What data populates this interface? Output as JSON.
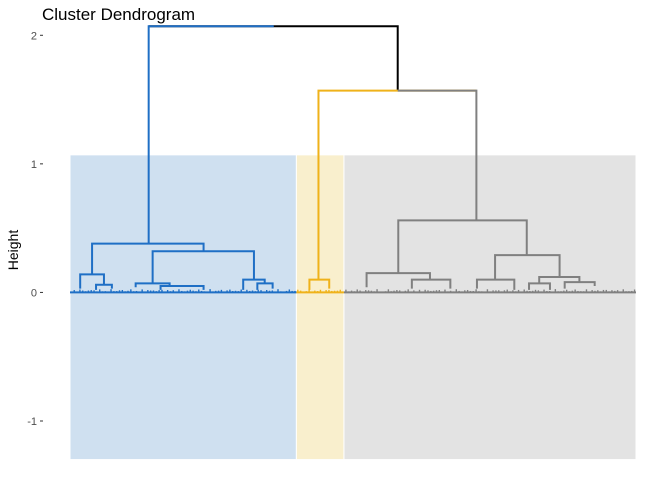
{
  "chart_data": {
    "type": "dendrogram",
    "title": "Cluster Dendrogram",
    "xlabel": "",
    "ylabel": "Height",
    "ylim": [
      -1.35,
      2.15
    ],
    "y_ticks": [
      {
        "value": 2,
        "label": "2"
      },
      {
        "value": 1,
        "label": "1"
      },
      {
        "value": 0,
        "label": "0"
      },
      {
        "value": -1,
        "label": "-1"
      }
    ],
    "grid": false,
    "rect_bottom": -1.3,
    "rect_top": 1.07,
    "colors": {
      "cluster_1": "#1f6fc5",
      "cluster_2": "#efb21a",
      "cluster_3": "#808080",
      "root": "#000000",
      "rect_1": "#cfe0f0",
      "rect_2": "#f9efcd",
      "rect_3": "#e3e3e3"
    },
    "clusters": [
      {
        "id": 1,
        "color_key": "cluster_1",
        "rect_key": "rect_1",
        "leaf_start": 0,
        "leaf_end": 0.4
      },
      {
        "id": 2,
        "color_key": "cluster_2",
        "rect_key": "rect_2",
        "leaf_start": 0.4,
        "leaf_end": 0.484
      },
      {
        "id": 3,
        "color_key": "cluster_3",
        "rect_key": "rect_3",
        "leaf_start": 0.484,
        "leaf_end": 1
      }
    ],
    "merges": [
      {
        "height": 2.07,
        "left": 0.139,
        "right": 0.579,
        "color_key": "root",
        "left_drop": 2.07,
        "right_drop": 1.57
      },
      {
        "height": 2.07,
        "left": 0.139,
        "right": 0.36,
        "color_key": "cluster_1",
        "left_drop": 0.38,
        "right_drop": 2.07
      },
      {
        "height": 1.57,
        "left": 0.439,
        "right": 0.718,
        "color_key": "cluster_2",
        "left_drop": 0.1,
        "right_drop": 1.57
      },
      {
        "height": 1.57,
        "left": 0.579,
        "right": 0.718,
        "color_key": "cluster_3",
        "left_drop": 1.57,
        "right_drop": 0.56
      },
      {
        "height": 0.38,
        "left": 0.039,
        "right": 0.236,
        "color_key": "cluster_1",
        "left_drop": 0.14,
        "right_drop": 0.32
      },
      {
        "height": 0.32,
        "left": 0.146,
        "right": 0.325,
        "color_key": "cluster_1",
        "left_drop": 0.07,
        "right_drop": 0.1
      },
      {
        "height": 0.14,
        "left": 0.018,
        "right": 0.06,
        "color_key": "cluster_1",
        "left_drop": 0.03,
        "right_drop": 0.06
      },
      {
        "height": 0.06,
        "left": 0.046,
        "right": 0.074,
        "color_key": "cluster_1",
        "left_drop": 0.02,
        "right_drop": 0.03
      },
      {
        "height": 0.07,
        "left": 0.116,
        "right": 0.176,
        "color_key": "cluster_1",
        "left_drop": 0.04,
        "right_drop": 0.05
      },
      {
        "height": 0.05,
        "left": 0.16,
        "right": 0.236,
        "color_key": "cluster_1",
        "left_drop": 0.02,
        "right_drop": 0.02
      },
      {
        "height": 0.1,
        "left": 0.306,
        "right": 0.344,
        "color_key": "cluster_1",
        "left_drop": 0.02,
        "right_drop": 0.07
      },
      {
        "height": 0.07,
        "left": 0.331,
        "right": 0.358,
        "color_key": "cluster_1",
        "left_drop": 0.02,
        "right_drop": 0.03
      },
      {
        "height": 0.1,
        "left": 0.423,
        "right": 0.458,
        "color_key": "cluster_2",
        "left_drop": 0.02,
        "right_drop": 0.03
      },
      {
        "height": 0.56,
        "left": 0.58,
        "right": 0.807,
        "color_key": "cluster_3",
        "left_drop": 0.15,
        "right_drop": 0.29
      },
      {
        "height": 0.15,
        "left": 0.524,
        "right": 0.636,
        "color_key": "cluster_3",
        "left_drop": 0.04,
        "right_drop": 0.1
      },
      {
        "height": 0.1,
        "left": 0.604,
        "right": 0.672,
        "color_key": "cluster_3",
        "left_drop": 0.03,
        "right_drop": 0.03
      },
      {
        "height": 0.29,
        "left": 0.751,
        "right": 0.865,
        "color_key": "cluster_3",
        "left_drop": 0.1,
        "right_drop": 0.12
      },
      {
        "height": 0.1,
        "left": 0.719,
        "right": 0.785,
        "color_key": "cluster_3",
        "left_drop": 0.03,
        "right_drop": 0.02
      },
      {
        "height": 0.12,
        "left": 0.829,
        "right": 0.9,
        "color_key": "cluster_3",
        "left_drop": 0.07,
        "right_drop": 0.08
      },
      {
        "height": 0.07,
        "left": 0.811,
        "right": 0.848,
        "color_key": "cluster_3",
        "left_drop": 0.02,
        "right_drop": 0.02
      },
      {
        "height": 0.08,
        "left": 0.874,
        "right": 0.927,
        "color_key": "cluster_3",
        "left_drop": 0.03,
        "right_drop": 0.05
      }
    ],
    "leaf_count": 200
  }
}
